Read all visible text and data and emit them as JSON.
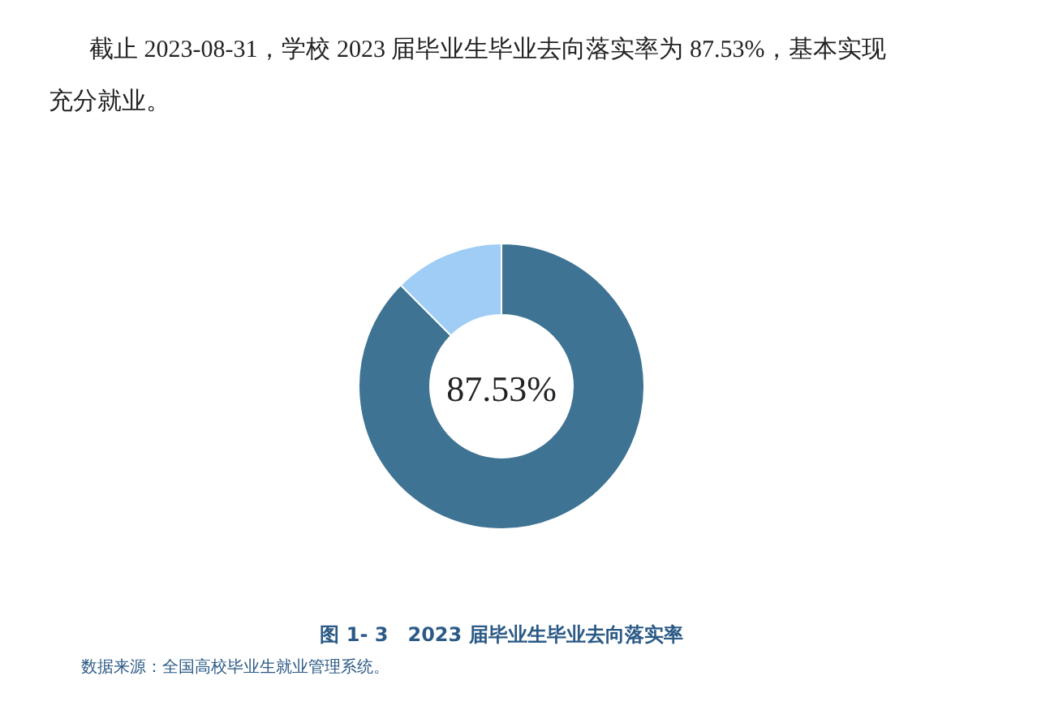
{
  "chart_data": {
    "type": "donut",
    "title": "图 1- 3　2023 届毕业生毕业去向落实率",
    "annotations": [
      "截止 2023-08-31，学校 2023 届毕业生毕业去向落实率为 87.53%，基本实现",
      "充分就业。",
      "数据来源：全国高校毕业生就业管理系统。"
    ],
    "categories": [
      null,
      null
    ],
    "values": [
      87.53,
      12.47
    ],
    "colors": [
      "#3e7393",
      "#9fcdf5"
    ],
    "value_labels": [
      "87.53%",
      null
    ]
  }
}
